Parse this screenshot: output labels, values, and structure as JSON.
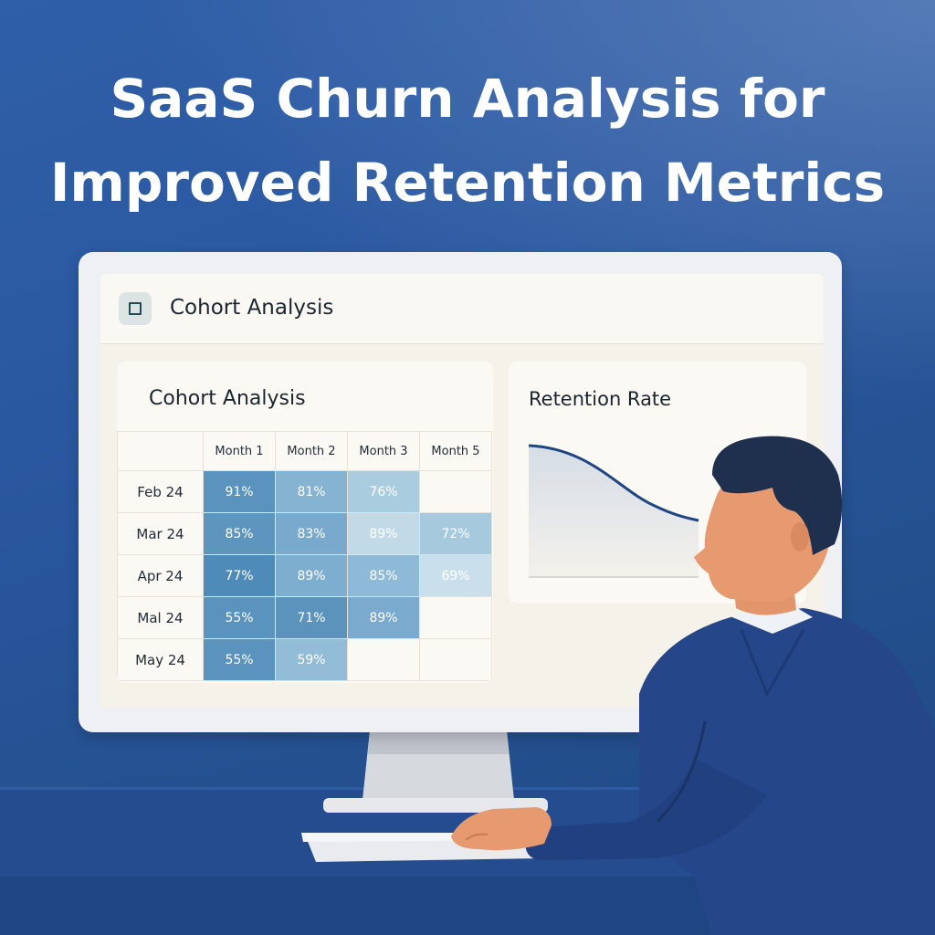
{
  "headline": {
    "line1": "SaaS Churn Analysis for",
    "line2": "Improved Retention Metrics"
  },
  "app": {
    "title": "Cohort Analysis",
    "icon": "square-icon"
  },
  "cohort_card": {
    "title": "Cohort Analysis",
    "columns": [
      "Month 1",
      "Month 2",
      "Month 3",
      "Month 5"
    ],
    "rows": [
      {
        "label": "Feb 24",
        "cells": [
          "91%",
          "81%",
          "76%",
          ""
        ]
      },
      {
        "label": "Mar 24",
        "cells": [
          "85%",
          "83%",
          "89%",
          "72%"
        ]
      },
      {
        "label": "Apr 24",
        "cells": [
          "77%",
          "89%",
          "85%",
          "69%"
        ]
      },
      {
        "label": "Mal 24",
        "cells": [
          "55%",
          "71%",
          "89%",
          ""
        ]
      },
      {
        "label": "May 24",
        "cells": [
          "55%",
          "59%",
          "",
          ""
        ]
      }
    ]
  },
  "retention_card": {
    "title": "Retention Rate"
  },
  "colors": {
    "background": "#2a58a0",
    "heat_dark": "#5a93bd",
    "heat_mid": "#86b3d2",
    "heat_light": "#bcd6e6",
    "curve": "#1f4682"
  }
}
